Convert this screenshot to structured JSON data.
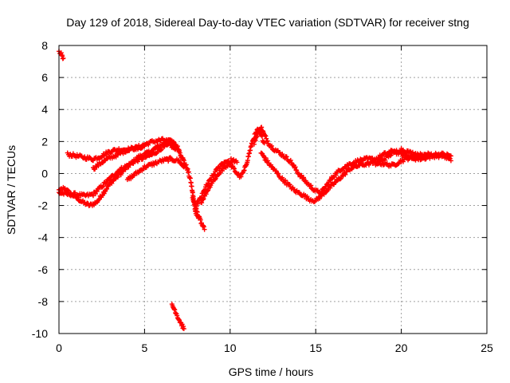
{
  "chart_data": {
    "type": "scatter",
    "title": "Day 129 of 2018, Sidereal Day-to-day VTEC variation (SDTVAR) for receiver stng",
    "xlabel": "GPS time / hours",
    "ylabel": "SDTVAR / TECUs",
    "xlim": [
      0,
      25
    ],
    "ylim": [
      -10,
      8
    ],
    "xticks": [
      0,
      5,
      10,
      15,
      20,
      25
    ],
    "yticks": [
      -10,
      -8,
      -6,
      -4,
      -2,
      0,
      2,
      4,
      6,
      8
    ],
    "grid": true,
    "marker": "+",
    "series": [
      {
        "name": "SDTVAR",
        "color": "#ff0000",
        "tracks": [
          [
            [
              0.0,
              7.6
            ],
            [
              0.1,
              7.5
            ],
            [
              0.2,
              7.3
            ],
            [
              0.25,
              7.2
            ]
          ],
          [
            [
              0.0,
              -1.1
            ],
            [
              0.3,
              -0.9
            ],
            [
              0.6,
              -1.2
            ],
            [
              1.0,
              -1.5
            ],
            [
              1.4,
              -1.8
            ],
            [
              1.8,
              -2.0
            ],
            [
              2.2,
              -1.8
            ],
            [
              2.6,
              -1.2
            ],
            [
              3.0,
              -0.6
            ],
            [
              3.4,
              -0.2
            ],
            [
              3.8,
              0.2
            ],
            [
              4.2,
              0.6
            ],
            [
              4.6,
              1.0
            ],
            [
              5.0,
              1.2
            ],
            [
              5.4,
              1.4
            ],
            [
              5.8,
              1.7
            ],
            [
              6.2,
              1.9
            ],
            [
              6.6,
              2.0
            ],
            [
              6.9,
              1.7
            ],
            [
              7.2,
              1.0
            ],
            [
              7.5,
              0.3
            ],
            [
              7.7,
              -0.5
            ],
            [
              7.85,
              -1.5
            ],
            [
              8.0,
              -2.5
            ],
            [
              8.15,
              -2.8
            ]
          ],
          [
            [
              0.0,
              -1.2
            ],
            [
              0.5,
              -1.3
            ],
            [
              1.0,
              -1.3
            ],
            [
              1.5,
              -1.4
            ],
            [
              2.0,
              -1.3
            ],
            [
              2.5,
              -0.8
            ],
            [
              3.0,
              -0.3
            ],
            [
              3.5,
              0.2
            ],
            [
              4.0,
              0.5
            ],
            [
              4.5,
              0.8
            ],
            [
              5.0,
              1.0
            ],
            [
              5.5,
              1.2
            ],
            [
              6.0,
              1.6
            ],
            [
              6.5,
              1.8
            ],
            [
              6.8,
              1.5
            ]
          ],
          [
            [
              0.5,
              1.2
            ],
            [
              1.0,
              1.1
            ],
            [
              1.5,
              1.0
            ],
            [
              2.0,
              0.9
            ],
            [
              2.5,
              1.1
            ],
            [
              3.0,
              1.4
            ],
            [
              3.5,
              1.5
            ],
            [
              4.0,
              1.5
            ],
            [
              4.5,
              1.6
            ],
            [
              5.0,
              1.8
            ],
            [
              5.5,
              2.0
            ],
            [
              6.0,
              2.1
            ],
            [
              6.5,
              2.0
            ],
            [
              7.0,
              1.5
            ]
          ],
          [
            [
              2.0,
              0.3
            ],
            [
              2.5,
              0.7
            ],
            [
              3.0,
              1.0
            ],
            [
              3.5,
              1.2
            ],
            [
              4.0,
              1.5
            ],
            [
              4.5,
              1.6
            ],
            [
              5.0,
              1.7
            ]
          ],
          [
            [
              4.0,
              -0.4
            ],
            [
              4.5,
              0.0
            ],
            [
              5.0,
              0.4
            ],
            [
              5.5,
              0.6
            ],
            [
              6.0,
              0.8
            ],
            [
              6.5,
              0.9
            ],
            [
              7.0,
              0.8
            ],
            [
              7.3,
              0.4
            ]
          ],
          [
            [
              7.8,
              -1.5
            ],
            [
              8.0,
              -2.2
            ],
            [
              8.2,
              -2.8
            ],
            [
              8.4,
              -3.3
            ],
            [
              8.5,
              -3.5
            ]
          ],
          [
            [
              8.0,
              -2.0
            ],
            [
              8.3,
              -1.5
            ],
            [
              8.6,
              -0.8
            ],
            [
              8.9,
              -0.3
            ],
            [
              9.2,
              0.2
            ],
            [
              9.5,
              0.6
            ],
            [
              9.8,
              0.8
            ],
            [
              10.0,
              0.6
            ],
            [
              10.2,
              0.3
            ],
            [
              10.4,
              0.0
            ],
            [
              10.6,
              -0.2
            ],
            [
              10.8,
              0.1
            ],
            [
              11.0,
              0.8
            ],
            [
              11.2,
              1.6
            ],
            [
              11.4,
              2.3
            ],
            [
              11.6,
              2.7
            ],
            [
              11.8,
              2.4
            ],
            [
              12.0,
              1.9
            ]
          ],
          [
            [
              8.3,
              -1.8
            ],
            [
              8.6,
              -1.2
            ],
            [
              8.9,
              -0.6
            ],
            [
              9.2,
              -0.2
            ],
            [
              9.5,
              0.2
            ],
            [
              9.8,
              0.5
            ],
            [
              10.1,
              0.9
            ],
            [
              10.4,
              0.7
            ]
          ],
          [
            [
              11.4,
              1.9
            ],
            [
              11.6,
              2.5
            ],
            [
              11.8,
              2.9
            ],
            [
              12.0,
              2.4
            ],
            [
              12.3,
              1.8
            ],
            [
              12.6,
              1.5
            ],
            [
              13.0,
              1.2
            ],
            [
              13.5,
              0.8
            ],
            [
              14.0,
              0.0
            ],
            [
              14.5,
              -0.6
            ],
            [
              15.0,
              -1.1
            ],
            [
              15.3,
              -1.2
            ],
            [
              15.6,
              -0.8
            ],
            [
              16.0,
              -0.2
            ],
            [
              16.5,
              0.3
            ],
            [
              17.0,
              0.6
            ],
            [
              17.5,
              0.8
            ],
            [
              18.0,
              0.9
            ],
            [
              18.5,
              0.9
            ],
            [
              19.0,
              1.2
            ],
            [
              19.5,
              1.4
            ],
            [
              20.0,
              1.2
            ],
            [
              20.5,
              1.0
            ],
            [
              21.0,
              1.1
            ],
            [
              21.5,
              1.2
            ],
            [
              22.0,
              1.2
            ],
            [
              22.5,
              1.2
            ],
            [
              22.9,
              1.1
            ]
          ],
          [
            [
              11.8,
              1.3
            ],
            [
              12.2,
              0.7
            ],
            [
              12.6,
              0.2
            ],
            [
              13.0,
              -0.3
            ],
            [
              13.4,
              -0.7
            ],
            [
              13.8,
              -1.1
            ],
            [
              14.2,
              -1.3
            ],
            [
              14.6,
              -1.6
            ],
            [
              15.0,
              -1.7
            ],
            [
              15.4,
              -1.3
            ],
            [
              15.8,
              -0.9
            ],
            [
              16.2,
              -0.5
            ],
            [
              16.6,
              -0.1
            ],
            [
              17.0,
              0.3
            ],
            [
              17.5,
              0.5
            ],
            [
              18.0,
              0.6
            ],
            [
              18.5,
              0.7
            ],
            [
              19.0,
              0.6
            ],
            [
              19.5,
              0.5
            ],
            [
              20.0,
              0.8
            ],
            [
              20.5,
              1.0
            ],
            [
              21.0,
              0.9
            ],
            [
              21.5,
              1.0
            ],
            [
              22.0,
              1.1
            ],
            [
              22.5,
              1.1
            ],
            [
              22.9,
              0.8
            ]
          ],
          [
            [
              18.5,
              0.6
            ],
            [
              19.0,
              0.9
            ],
            [
              19.5,
              1.3
            ],
            [
              20.0,
              1.5
            ],
            [
              20.5,
              1.3
            ],
            [
              21.0,
              1.2
            ],
            [
              21.5,
              1.0
            ]
          ],
          [
            [
              6.6,
              -8.2
            ],
            [
              6.8,
              -8.6
            ],
            [
              7.0,
              -9.1
            ],
            [
              7.2,
              -9.5
            ],
            [
              7.3,
              -9.7
            ]
          ]
        ]
      }
    ]
  }
}
